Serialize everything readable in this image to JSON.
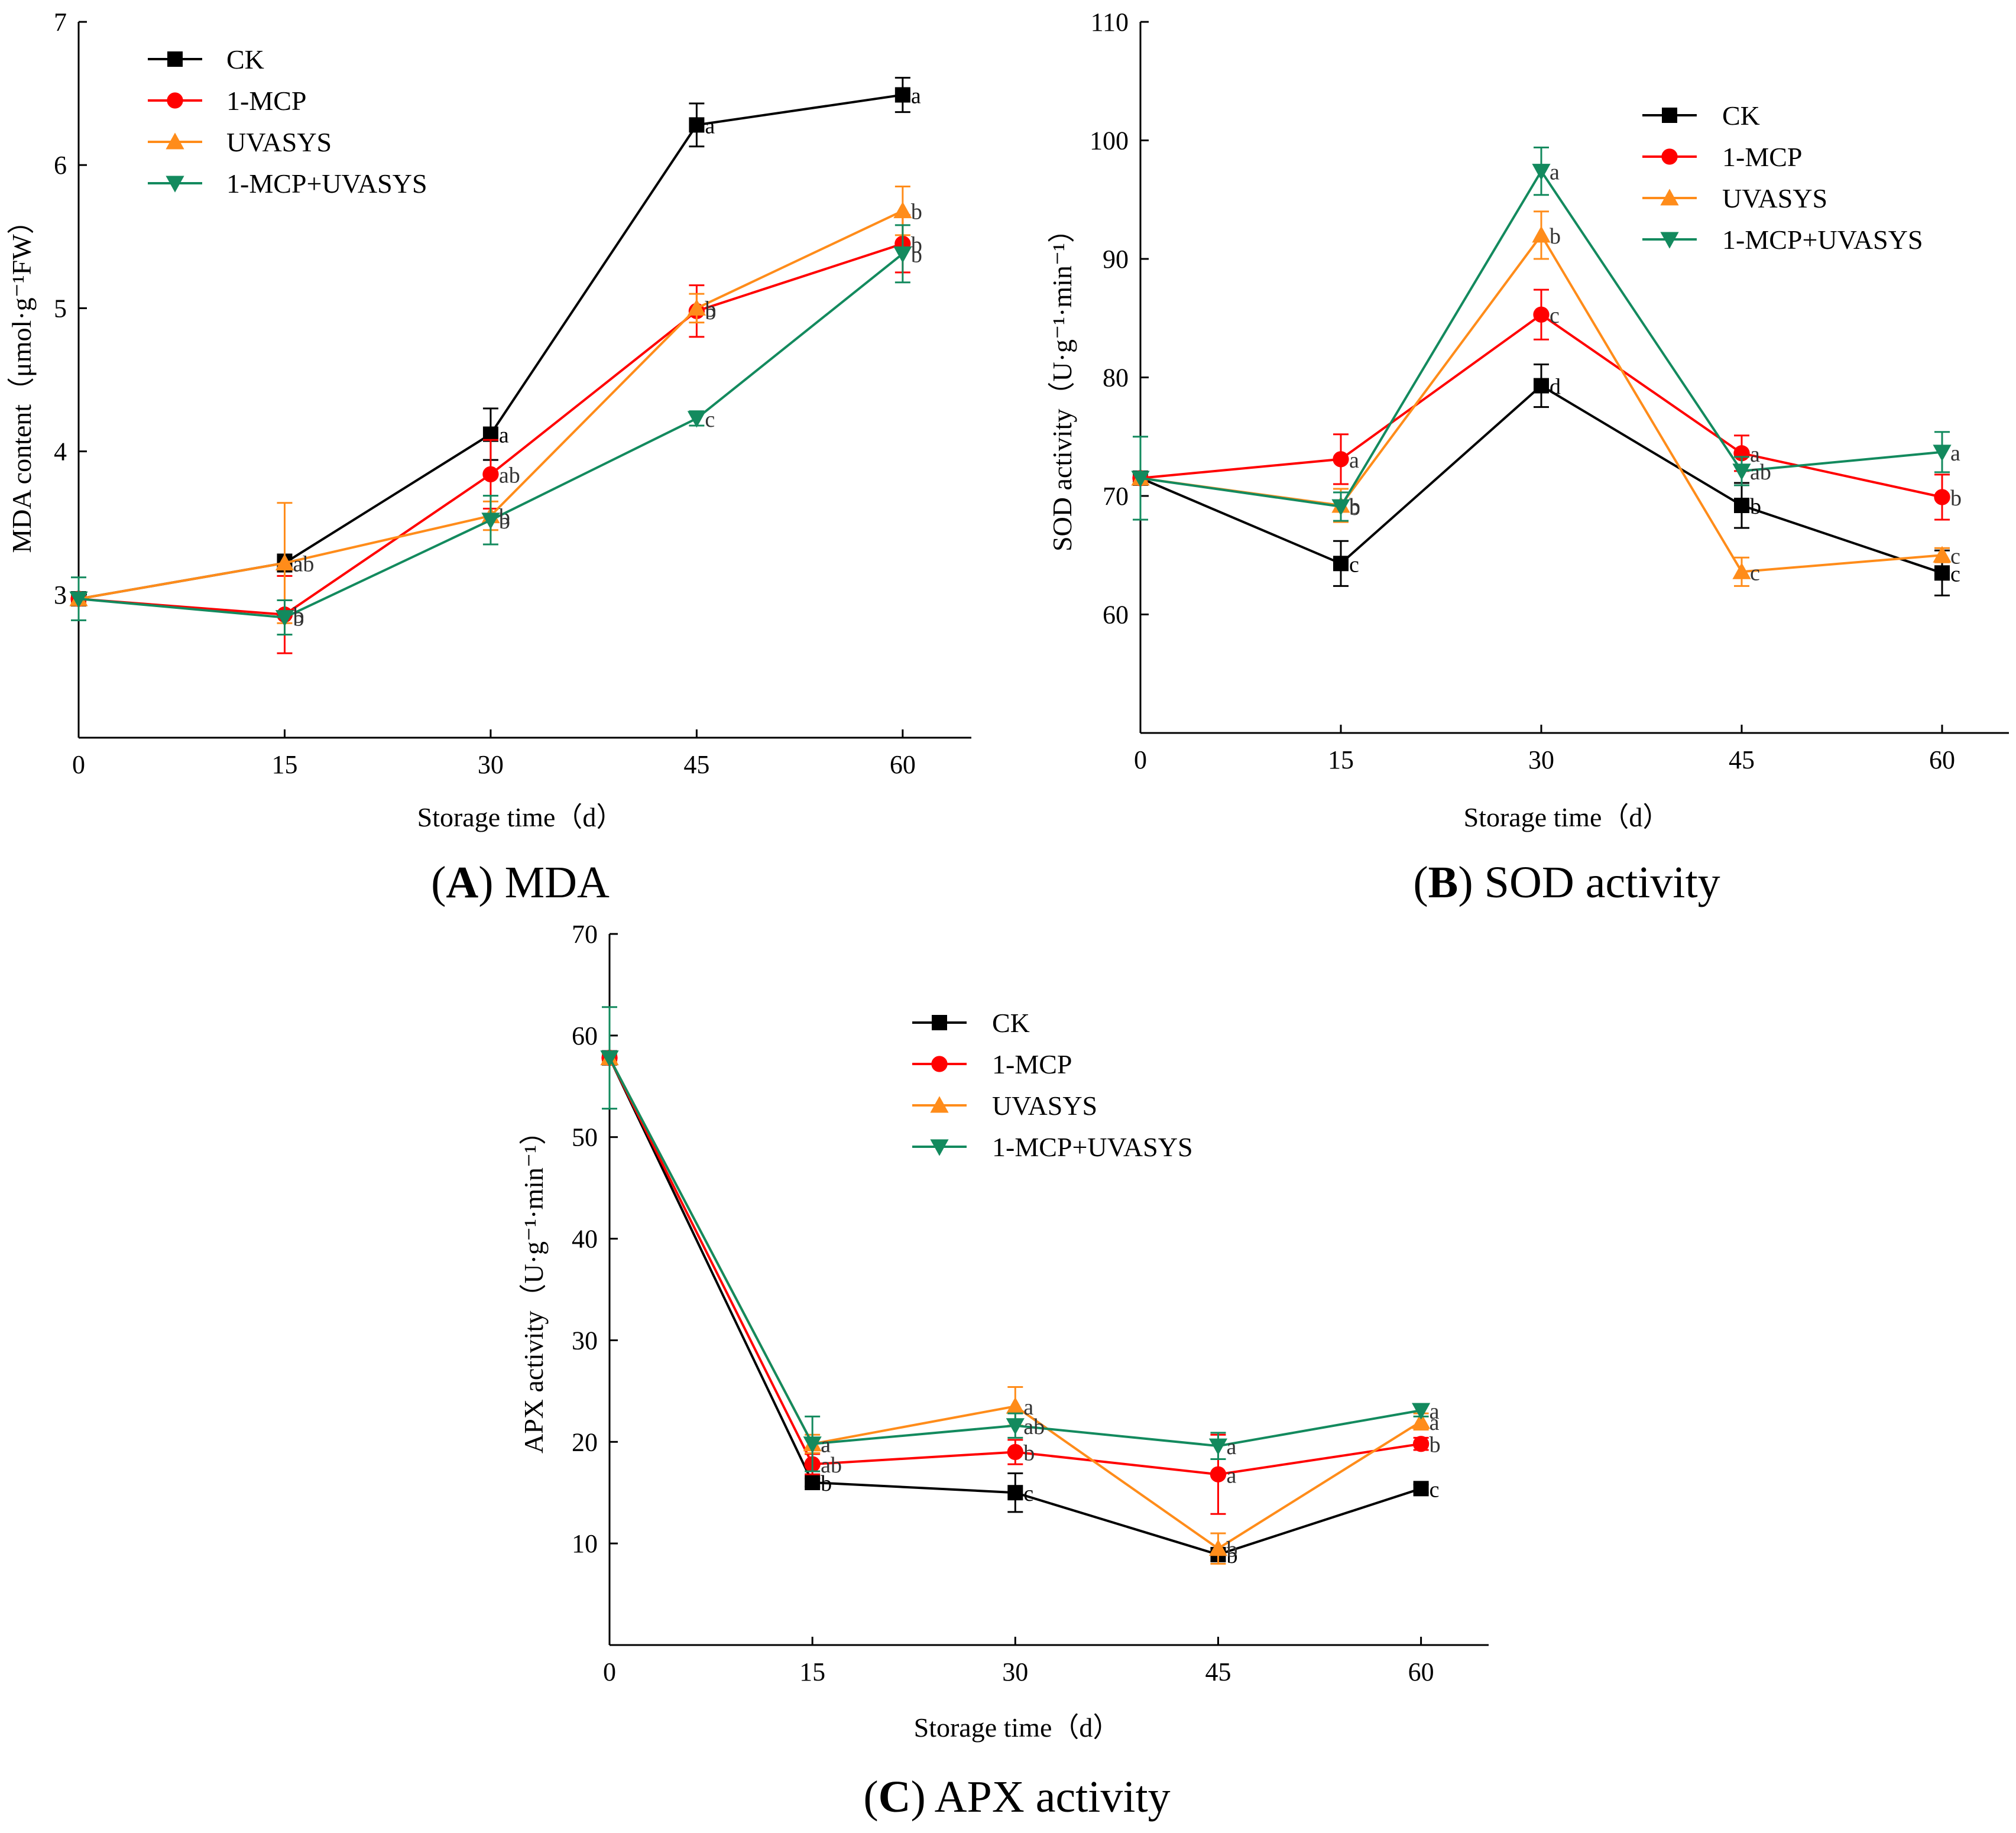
{
  "chart_data": [
    {
      "type": "line",
      "panel": "A",
      "caption_letter": "A",
      "caption_text": "MDA",
      "ylabel": "MDA content（μmol·g⁻¹FW）",
      "xlabel": "Storage time（d）",
      "x": [
        0,
        15,
        30,
        45,
        60
      ],
      "x_ticks": [
        "0",
        "15",
        "30",
        "45",
        "60"
      ],
      "xlim": [
        0,
        65
      ],
      "ylim": [
        2,
        7
      ],
      "y_ticks": [
        3,
        4,
        5,
        6,
        7
      ],
      "legend_position": "top-left",
      "series": [
        {
          "name": "CK",
          "color": "#000000",
          "marker": "square",
          "values": [
            2.97,
            3.22,
            4.12,
            6.28,
            6.49
          ],
          "errors": [
            0.03,
            0.06,
            0.18,
            0.15,
            0.12
          ],
          "letters": [
            "",
            "a",
            "a",
            "a",
            "a"
          ]
        },
        {
          "name": "1-MCP",
          "color": "#ff0000",
          "marker": "circle",
          "values": [
            2.97,
            2.86,
            3.84,
            4.98,
            5.45
          ],
          "errors": [
            0.03,
            0.27,
            0.24,
            0.18,
            0.2
          ],
          "letters": [
            "",
            "b",
            "ab",
            "b",
            "b"
          ]
        },
        {
          "name": "UVASYS",
          "color": "#ff8c1a",
          "marker": "triangle-up",
          "values": [
            2.97,
            3.22,
            3.55,
            5.0,
            5.68
          ],
          "errors": [
            0.03,
            0.42,
            0.1,
            0.1,
            0.17
          ],
          "letters": [
            "",
            "ab",
            "b",
            "b",
            "b"
          ]
        },
        {
          "name": "1-MCP+UVASYS",
          "color": "#138a5e",
          "marker": "triangle-down",
          "values": [
            2.97,
            2.84,
            3.52,
            4.23,
            5.38
          ],
          "errors": [
            0.15,
            0.12,
            0.17,
            0.05,
            0.2
          ],
          "letters": [
            "",
            "b",
            "b",
            "c",
            "b"
          ]
        }
      ]
    },
    {
      "type": "line",
      "panel": "B",
      "caption_letter": "B",
      "caption_text": "SOD activity",
      "ylabel": "SOD activity（U·g⁻¹·min⁻¹）",
      "xlabel": "Storage time（d）",
      "x": [
        0,
        15,
        30,
        45,
        60
      ],
      "x_ticks": [
        "0",
        "15",
        "30",
        "45",
        "60"
      ],
      "xlim": [
        0,
        65
      ],
      "ylim": [
        50,
        110
      ],
      "y_ticks": [
        60,
        70,
        80,
        90,
        100,
        110
      ],
      "legend_position": "top-right",
      "series": [
        {
          "name": "CK",
          "color": "#000000",
          "marker": "square",
          "values": [
            71.5,
            64.3,
            79.3,
            69.2,
            63.5
          ],
          "errors": [
            0.4,
            1.9,
            1.8,
            1.9,
            1.9
          ],
          "letters": [
            "",
            "c",
            "d",
            "b",
            "c"
          ]
        },
        {
          "name": "1-MCP",
          "color": "#ff0000",
          "marker": "circle",
          "values": [
            71.5,
            73.1,
            85.3,
            73.6,
            69.9
          ],
          "errors": [
            0.4,
            2.1,
            2.1,
            1.5,
            1.9
          ],
          "letters": [
            "",
            "a",
            "c",
            "a",
            "b"
          ]
        },
        {
          "name": "UVASYS",
          "color": "#ff8c1a",
          "marker": "triangle-up",
          "values": [
            71.5,
            69.2,
            92.0,
            63.6,
            65.0
          ],
          "errors": [
            0.4,
            1.4,
            2.0,
            1.2,
            0.6
          ],
          "letters": [
            "",
            "b",
            "b",
            "c",
            "c"
          ]
        },
        {
          "name": "1-MCP+UVASYS",
          "color": "#138a5e",
          "marker": "triangle-down",
          "values": [
            71.5,
            69.1,
            97.4,
            72.1,
            73.7
          ],
          "errors": [
            3.5,
            1.2,
            2.0,
            1.2,
            1.7
          ],
          "letters": [
            "",
            "b",
            "a",
            "ab",
            "a"
          ]
        }
      ]
    },
    {
      "type": "line",
      "panel": "C",
      "caption_letter": "C",
      "caption_text": "APX activity",
      "ylabel": "APX activity（U·g⁻¹·min⁻¹）",
      "xlabel": "Storage time（d）",
      "x": [
        0,
        15,
        30,
        45,
        60
      ],
      "x_ticks": [
        "0",
        "15",
        "30",
        "45",
        "60"
      ],
      "xlim": [
        0,
        65
      ],
      "ylim": [
        0,
        70
      ],
      "y_ticks": [
        10,
        20,
        30,
        40,
        50,
        60,
        70
      ],
      "legend_position": "top-center",
      "series": [
        {
          "name": "CK",
          "color": "#000000",
          "marker": "square",
          "values": [
            57.8,
            16.0,
            15.0,
            8.9,
            15.4
          ],
          "errors": [
            0.4,
            0.4,
            1.9,
            0.6,
            0.4
          ],
          "letters": [
            "",
            "b",
            "c",
            "b",
            "c"
          ]
        },
        {
          "name": "1-MCP",
          "color": "#ff0000",
          "marker": "circle",
          "values": [
            57.8,
            17.8,
            19.0,
            16.8,
            19.8
          ],
          "errors": [
            0.4,
            1.0,
            1.2,
            3.9,
            0.6
          ],
          "letters": [
            "",
            "ab",
            "b",
            "a",
            "b"
          ]
        },
        {
          "name": "UVASYS",
          "color": "#ff8c1a",
          "marker": "triangle-up",
          "values": [
            57.8,
            19.8,
            23.5,
            9.5,
            22.0
          ],
          "errors": [
            0.4,
            0.9,
            1.9,
            1.5,
            0.8
          ],
          "letters": [
            "",
            "a",
            "a",
            "b",
            "a"
          ]
        },
        {
          "name": "1-MCP+UVASYS",
          "color": "#138a5e",
          "marker": "triangle-down",
          "values": [
            57.8,
            19.8,
            21.6,
            19.6,
            23.1
          ],
          "errors": [
            5.0,
            2.7,
            1.2,
            1.3,
            0.6
          ],
          "letters": [
            "",
            "a",
            "ab",
            "a",
            "a"
          ]
        }
      ]
    }
  ]
}
